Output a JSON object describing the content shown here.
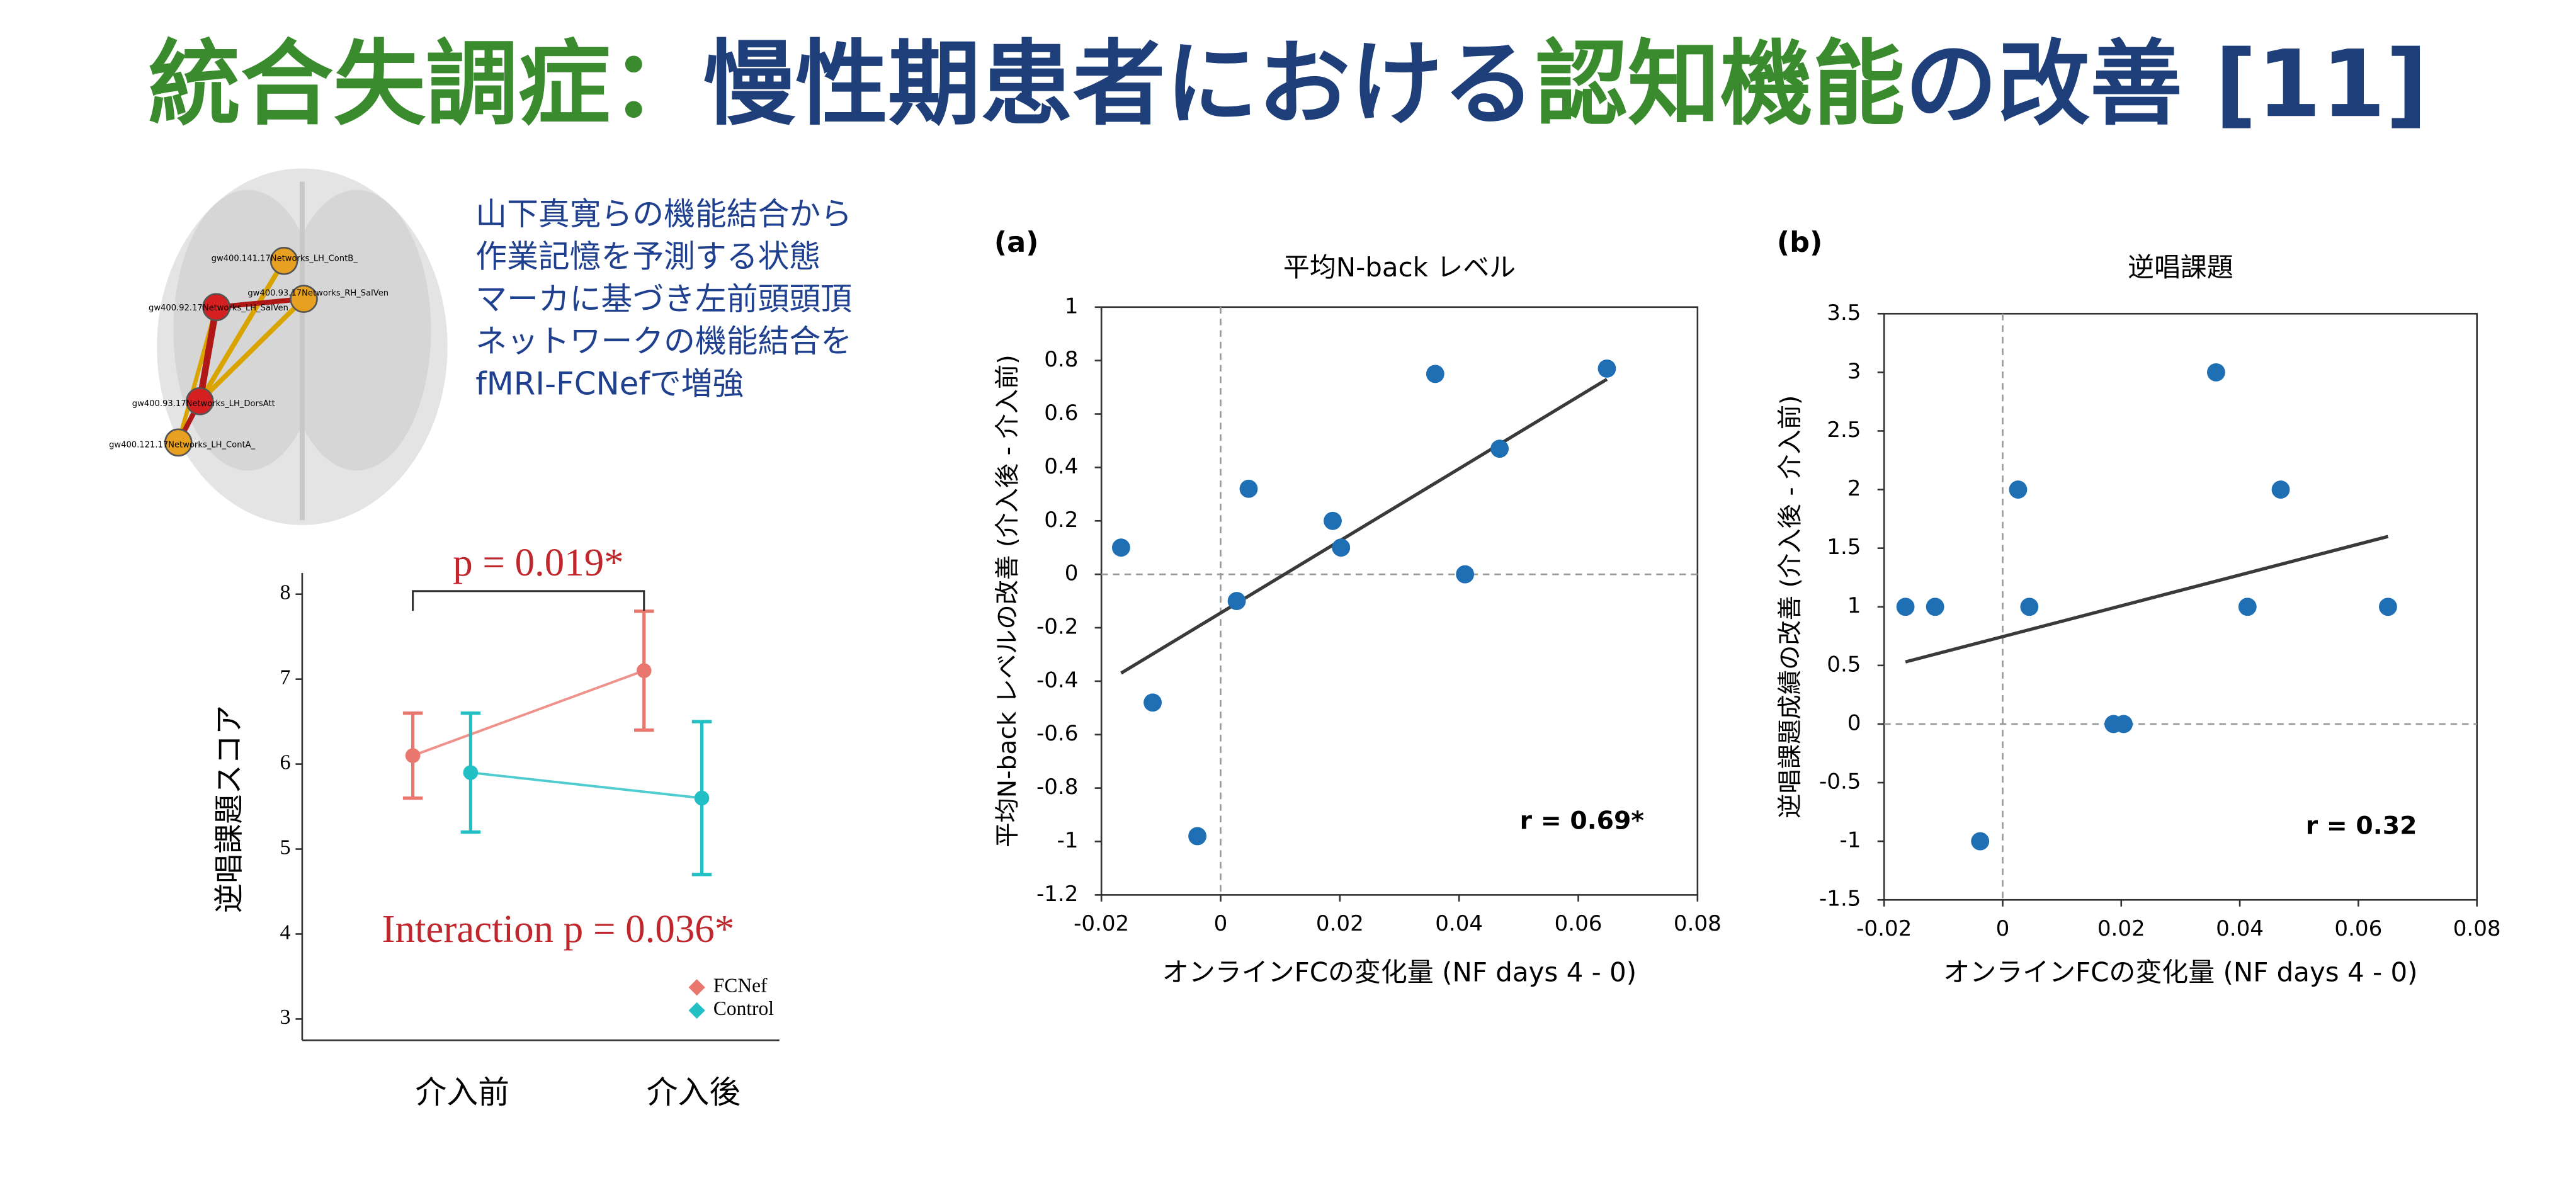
{
  "title": [
    {
      "text": "統合失調症：",
      "color": "#3a8a2e"
    },
    {
      "text": "慢性期患者における",
      "color": "#1f3f7a"
    },
    {
      "text": "認知機能",
      "color": "#3a8a2e"
    },
    {
      "text": "の改善 [11]",
      "color": "#1f3f7a"
    }
  ],
  "caption": [
    "山下真寛らの機能結合から",
    "作業記憶を予測する状態",
    "マーカに基づき左前頭頭頂",
    "ネットワークの機能結合を",
    "fMRI-FCNefで増強"
  ],
  "brain_labels": [
    "gw400.141.17Networks_LH_ContB_",
    "gw400.93.17Networks_RH_SalVen",
    "gw400.92.17Networks_LH_SalVen",
    "gw400.93.17Networks_LH_DorsAtt",
    "gw400.121.17Networks_LH_ContA_"
  ],
  "chart_data": [
    {
      "type": "line",
      "ylabel": "逆唱課題スコア",
      "categories": [
        "介入前",
        "介入後"
      ],
      "ylim": [
        2.75,
        8.25
      ],
      "yticks": [
        3,
        4,
        5,
        6,
        7,
        8
      ],
      "series": [
        {
          "name": "FCNef",
          "color": "#ea776e",
          "values": [
            6.1,
            7.1
          ],
          "errors": [
            0.5,
            0.7
          ]
        },
        {
          "name": "Control",
          "color": "#22bfc4",
          "values": [
            5.9,
            5.6
          ],
          "errors": [
            0.7,
            0.9
          ]
        }
      ],
      "annotations": [
        "p = 0.019*",
        "Interaction p = 0.036*"
      ],
      "annotation_color": "#c0272d"
    },
    {
      "type": "scatter",
      "label": "(a)",
      "title": "平均N-back レベル",
      "xlabel": "オンラインFCの変化量 (NF days 4 - 0)",
      "ylabel": "平均N-back レベルの改善 (介入後 - 介入前)",
      "xlim": [
        -0.02,
        0.08
      ],
      "xticks": [
        -0.02,
        0,
        0.02,
        0.04,
        0.06,
        0.08
      ],
      "ylim": [
        -1.2,
        1
      ],
      "yticks": [
        -1.2,
        -1,
        -0.8,
        -0.6,
        -0.4,
        -0.2,
        0,
        0.2,
        0.4,
        0.6,
        0.8,
        1
      ],
      "x": [
        -0.0167,
        -0.0114,
        -0.0039,
        0.0027,
        0.0047,
        0.0188,
        0.0202,
        0.036,
        0.041,
        0.0468,
        0.0648
      ],
      "y": [
        0.1,
        -0.48,
        -0.98,
        -0.1,
        0.32,
        0.2,
        0.1,
        0.75,
        0.0,
        0.47,
        0.77
      ],
      "color": "#1f6fb5",
      "trendline": {
        "x": [
          -0.0167,
          0.0648
        ],
        "y": [
          -0.37,
          0.73
        ]
      },
      "annotation": "r = 0.69*"
    },
    {
      "type": "scatter",
      "label": "(b)",
      "title": "逆唱課題",
      "xlabel": "オンラインFCの変化量 (NF days 4 - 0)",
      "ylabel": "逆唱課題成績の改善 (介入後 - 介入前)",
      "xlim": [
        -0.02,
        0.08
      ],
      "xticks": [
        -0.02,
        0,
        0.02,
        0.04,
        0.06,
        0.08
      ],
      "ylim": [
        -1.5,
        3.5
      ],
      "yticks": [
        -1.5,
        -1,
        -0.5,
        0,
        0.5,
        1,
        1.5,
        2,
        2.5,
        3,
        3.5
      ],
      "x": [
        -0.0164,
        -0.0114,
        -0.0038,
        0.0026,
        0.0045,
        0.0187,
        0.0204,
        0.036,
        0.0413,
        0.0469,
        0.065
      ],
      "y": [
        1,
        1,
        -1,
        2,
        1,
        0,
        0,
        3,
        1,
        2,
        1
      ],
      "color": "#1f6fb5",
      "trendline": {
        "x": [
          -0.0164,
          0.065
        ],
        "y": [
          0.53,
          1.6
        ]
      },
      "annotation": "r = 0.32"
    }
  ]
}
